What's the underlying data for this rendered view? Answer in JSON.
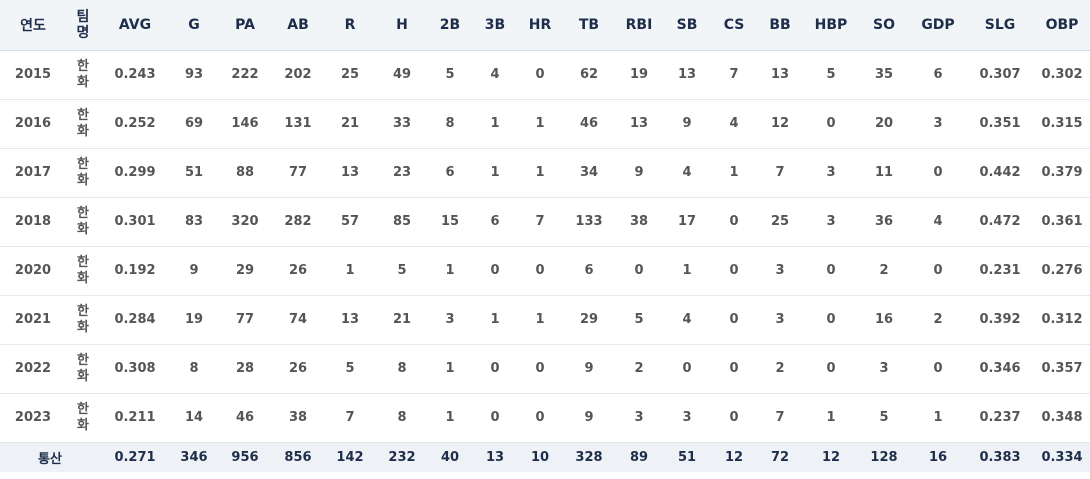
{
  "headers": [
    "연도",
    "팀명",
    "AVG",
    "G",
    "PA",
    "AB",
    "R",
    "H",
    "2B",
    "3B",
    "HR",
    "TB",
    "RBI",
    "SB",
    "CS",
    "BB",
    "HBP",
    "SO",
    "GDP",
    "SLG",
    "OBP"
  ],
  "rows": [
    [
      "2015",
      "한화",
      "0.243",
      "93",
      "222",
      "202",
      "25",
      "49",
      "5",
      "4",
      "0",
      "62",
      "19",
      "13",
      "7",
      "13",
      "5",
      "35",
      "6",
      "0.307",
      "0.302"
    ],
    [
      "2016",
      "한화",
      "0.252",
      "69",
      "146",
      "131",
      "21",
      "33",
      "8",
      "1",
      "1",
      "46",
      "13",
      "9",
      "4",
      "12",
      "0",
      "20",
      "3",
      "0.351",
      "0.315"
    ],
    [
      "2017",
      "한화",
      "0.299",
      "51",
      "88",
      "77",
      "13",
      "23",
      "6",
      "1",
      "1",
      "34",
      "9",
      "4",
      "1",
      "7",
      "3",
      "11",
      "0",
      "0.442",
      "0.379"
    ],
    [
      "2018",
      "한화",
      "0.301",
      "83",
      "320",
      "282",
      "57",
      "85",
      "15",
      "6",
      "7",
      "133",
      "38",
      "17",
      "0",
      "25",
      "3",
      "36",
      "4",
      "0.472",
      "0.361"
    ],
    [
      "2020",
      "한화",
      "0.192",
      "9",
      "29",
      "26",
      "1",
      "5",
      "1",
      "0",
      "0",
      "6",
      "0",
      "1",
      "0",
      "3",
      "0",
      "2",
      "0",
      "0.231",
      "0.276"
    ],
    [
      "2021",
      "한화",
      "0.284",
      "19",
      "77",
      "74",
      "13",
      "21",
      "3",
      "1",
      "1",
      "29",
      "5",
      "4",
      "0",
      "3",
      "0",
      "16",
      "2",
      "0.392",
      "0.312"
    ],
    [
      "2022",
      "한화",
      "0.308",
      "8",
      "28",
      "26",
      "5",
      "8",
      "1",
      "0",
      "0",
      "9",
      "2",
      "0",
      "0",
      "2",
      "0",
      "3",
      "0",
      "0.346",
      "0.357"
    ],
    [
      "2023",
      "한화",
      "0.211",
      "14",
      "46",
      "38",
      "7",
      "8",
      "1",
      "0",
      "0",
      "9",
      "3",
      "3",
      "0",
      "7",
      "1",
      "5",
      "1",
      "0.237",
      "0.348"
    ]
  ],
  "total": {
    "label": "통산",
    "values": [
      "0.271",
      "346",
      "956",
      "856",
      "142",
      "232",
      "40",
      "13",
      "10",
      "328",
      "89",
      "51",
      "12",
      "72",
      "12",
      "128",
      "16",
      "0.383",
      "0.334"
    ]
  }
}
